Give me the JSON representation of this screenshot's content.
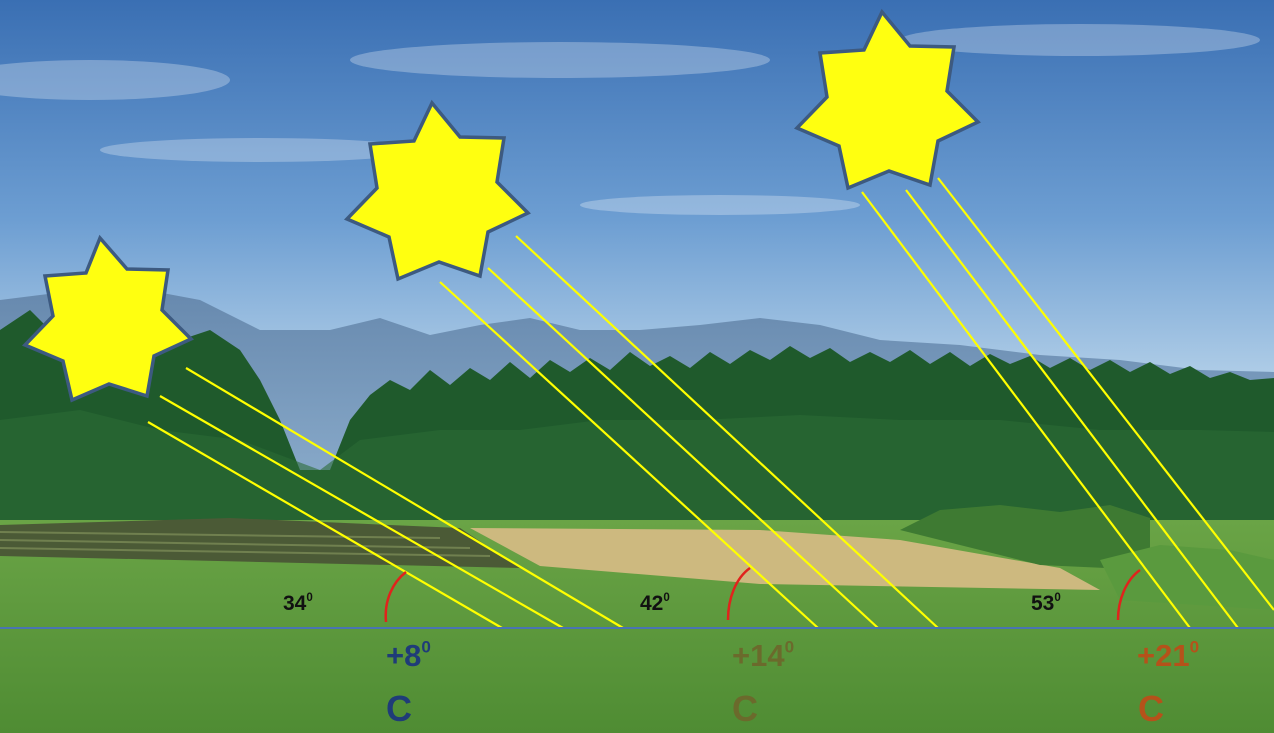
{
  "colors": {
    "sky_top": "#3f74b7",
    "sky_bottom": "#a9cbe6",
    "mountains": "#5d7fa4",
    "forest": "#1f5a2a",
    "field": "#5f9a3e",
    "hay": "#c9b57a",
    "horizon_line": "#4a74b3",
    "sun_fill": "#ffff10",
    "sun_stroke": "#3d5a80",
    "ray": "#ffff00",
    "arc": "#e0231c"
  },
  "cases": [
    {
      "angle": "34",
      "sup": "0",
      "temp": "+8",
      "temp_sup": "0",
      "unit": "C",
      "color": "#1f3c78"
    },
    {
      "angle": "42",
      "sup": "0",
      "temp": "+14",
      "temp_sup": "0",
      "unit": "C",
      "color": "#6b6a2c"
    },
    {
      "angle": "53",
      "sup": "0",
      "temp": "+21",
      "temp_sup": "0",
      "unit": "C",
      "color": "#b5521a"
    }
  ]
}
